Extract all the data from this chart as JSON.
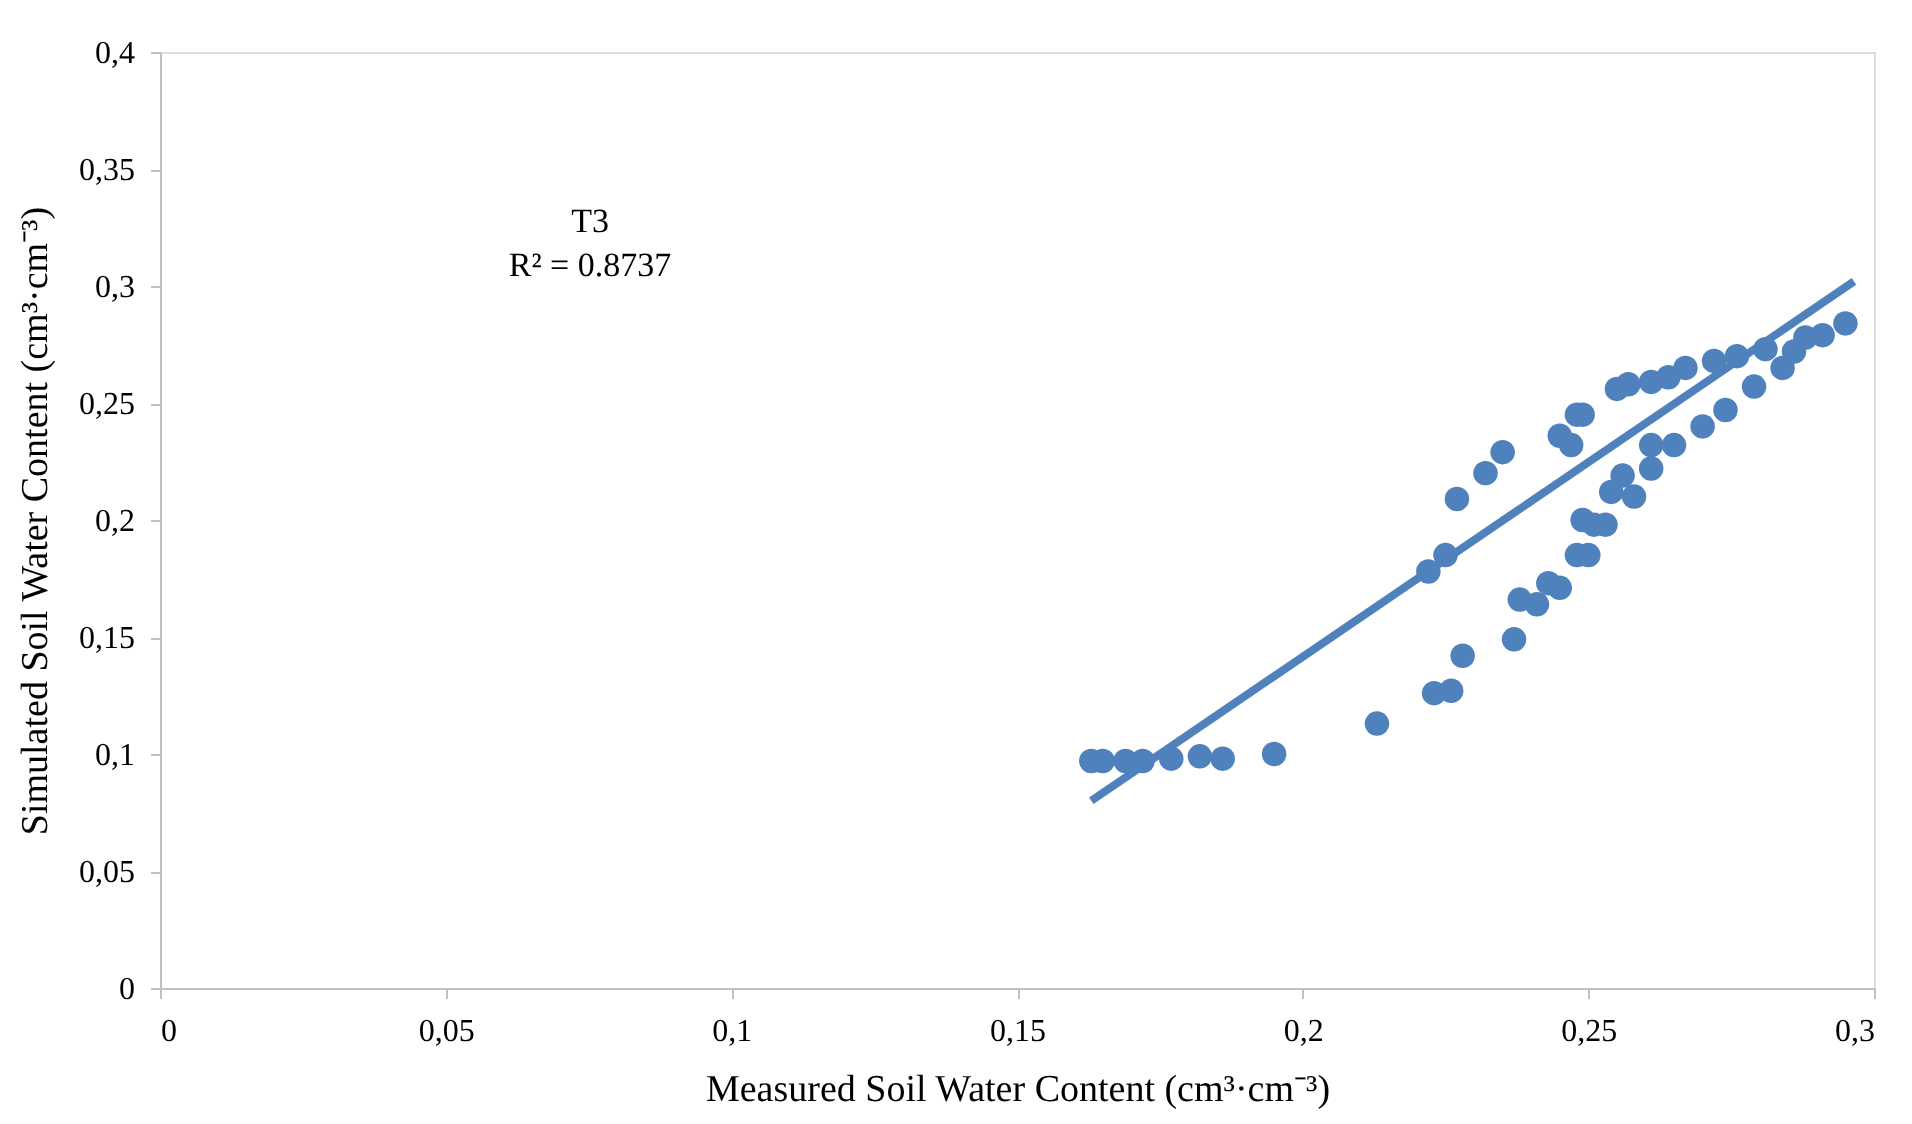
{
  "chart_data": {
    "type": "scatter",
    "xlabel": "Measured Soil Water Content (cm³·cm⁻³)",
    "ylabel": "Simulated Soil Water Content (cm³·cm⁻³)",
    "annotations": [
      "T3",
      "R² = 0.8737"
    ],
    "xlim": [
      0,
      0.3
    ],
    "ylim": [
      0,
      0.4
    ],
    "xticks": [
      0,
      {
        "value": 0.05,
        "label": "0,05"
      },
      {
        "value": 0.1,
        "label": "0,1"
      },
      {
        "value": 0.15,
        "label": "0,15"
      },
      {
        "value": 0.2,
        "label": "0,2"
      },
      {
        "value": 0.25,
        "label": "0,25"
      },
      {
        "value": 0.3,
        "label": "0,3"
      }
    ],
    "yticks": [
      0,
      {
        "value": 0.05,
        "label": "0,05"
      },
      {
        "value": 0.1,
        "label": "0,1"
      },
      {
        "value": 0.15,
        "label": "0,15"
      },
      {
        "value": 0.2,
        "label": "0,2"
      },
      {
        "value": 0.25,
        "label": "0,25"
      },
      {
        "value": 0.3,
        "label": "0,3"
      },
      {
        "value": 0.35,
        "label": "0,35"
      },
      {
        "value": 0.4,
        "label": "0,4"
      }
    ],
    "grid": false,
    "series": [
      {
        "marker": "circle",
        "color": "#4f81bd",
        "x": [
          0.163,
          0.165,
          0.169,
          0.172,
          0.177,
          0.182,
          0.186,
          0.195,
          0.213,
          0.223,
          0.226,
          0.228,
          0.222,
          0.225,
          0.227,
          0.232,
          0.235,
          0.237,
          0.238,
          0.241,
          0.243,
          0.245,
          0.245,
          0.247,
          0.248,
          0.249,
          0.248,
          0.25,
          0.249,
          0.251,
          0.253,
          0.254,
          0.256,
          0.258,
          0.255,
          0.257,
          0.261,
          0.261,
          0.261,
          0.265,
          0.264,
          0.267,
          0.27,
          0.272,
          0.274,
          0.276,
          0.279,
          0.281,
          0.284,
          0.286,
          0.288,
          0.291,
          0.295
        ],
        "values": [
          0.097,
          0.097,
          0.097,
          0.097,
          0.098,
          0.099,
          0.098,
          0.1,
          0.113,
          0.126,
          0.127,
          0.142,
          0.178,
          0.185,
          0.209,
          0.22,
          0.229,
          0.149,
          0.166,
          0.164,
          0.173,
          0.171,
          0.236,
          0.232,
          0.245,
          0.245,
          0.185,
          0.185,
          0.2,
          0.198,
          0.198,
          0.212,
          0.219,
          0.21,
          0.256,
          0.258,
          0.259,
          0.232,
          0.222,
          0.232,
          0.261,
          0.265,
          0.24,
          0.268,
          0.247,
          0.27,
          0.257,
          0.273,
          0.265,
          0.272,
          0.278,
          0.279,
          0.284
        ]
      },
      {
        "type": "line",
        "color": "#4f81bd",
        "x": [
          0.163,
          0.2965
        ],
        "values": [
          0.08,
          0.302
        ]
      }
    ]
  }
}
